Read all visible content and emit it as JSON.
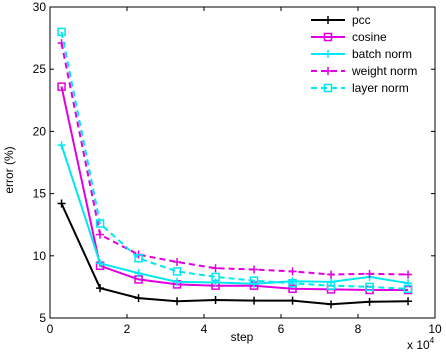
{
  "chart_data": {
    "type": "line",
    "title": "",
    "xlabel": "step",
    "ylabel": "error (%)",
    "x_multiplier_label": "x 10",
    "x_multiplier_exponent": "4",
    "xlim": [
      0,
      100000
    ],
    "ylim": [
      5,
      30
    ],
    "x_ticks": [
      0,
      20000,
      40000,
      60000,
      80000,
      100000
    ],
    "x_tick_labels": [
      "0",
      "2",
      "4",
      "6",
      "8",
      "10"
    ],
    "y_ticks": [
      5,
      10,
      15,
      20,
      25,
      30
    ],
    "y_tick_labels": [
      "5",
      "10",
      "15",
      "20",
      "25",
      "30"
    ],
    "grid": false,
    "legend_position": "top-right",
    "x": [
      3000,
      13000,
      23000,
      33000,
      43000,
      53000,
      63000,
      73000,
      83000,
      93000
    ],
    "series": [
      {
        "name": "pcc",
        "color": "#000000",
        "dash": "solid",
        "marker": "plus",
        "values": [
          14.2,
          7.4,
          6.6,
          6.35,
          6.45,
          6.4,
          6.4,
          6.1,
          6.3,
          6.35
        ]
      },
      {
        "name": "cosine",
        "color": "#e000e0",
        "dash": "solid",
        "marker": "square",
        "values": [
          23.6,
          9.2,
          8.1,
          7.7,
          7.6,
          7.6,
          7.35,
          7.3,
          7.25,
          7.25
        ]
      },
      {
        "name": "batch norm",
        "color": "#00e8f0",
        "dash": "solid",
        "marker": "plus",
        "values": [
          18.9,
          9.4,
          8.6,
          7.9,
          7.85,
          7.75,
          7.95,
          7.9,
          8.3,
          7.8
        ]
      },
      {
        "name": "weight norm",
        "color": "#e000e0",
        "dash": "dashed",
        "marker": "plus",
        "values": [
          27.1,
          11.7,
          10.1,
          9.5,
          9.0,
          8.9,
          8.75,
          8.5,
          8.55,
          8.5
        ]
      },
      {
        "name": "layer norm",
        "color": "#00e8f0",
        "dash": "dashed",
        "marker": "square",
        "values": [
          28.0,
          12.6,
          9.8,
          8.75,
          8.3,
          8.0,
          7.8,
          7.6,
          7.5,
          7.35
        ]
      }
    ]
  }
}
